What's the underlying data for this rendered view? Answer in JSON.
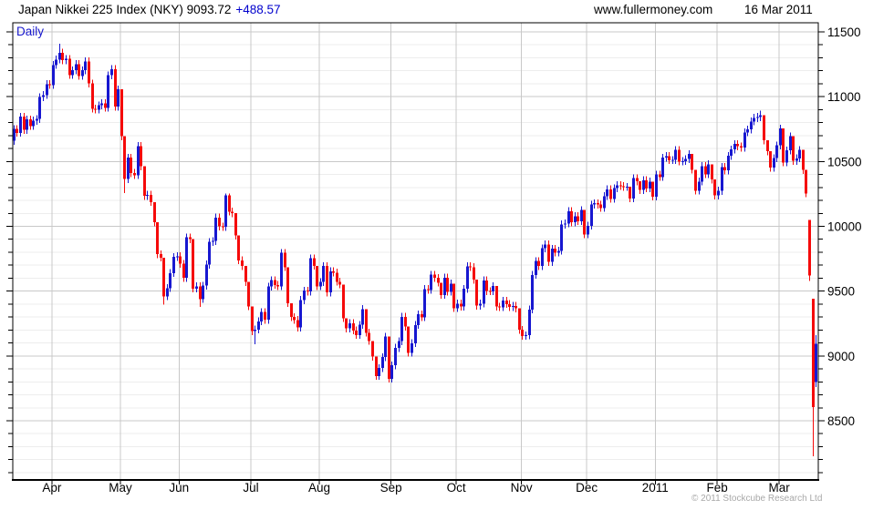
{
  "header": {
    "title": "Japan Nikkei 225 Index (NKY) 9093.72",
    "change": "+488.57",
    "website": "www.fullermoney.com",
    "date": "16 Mar 2011"
  },
  "footer": {
    "copyright": "© 2011 Stockcube Research Ltd"
  },
  "chart_data": {
    "type": "candlestick",
    "title": "Japan Nikkei 225 Index (NKY)",
    "timeframe_label": "Daily",
    "last_close": 9093.72,
    "change": 488.57,
    "ylim": [
      8043,
      11570
    ],
    "y_ticks": [
      8500,
      9000,
      9500,
      10000,
      10500,
      11000,
      11500
    ],
    "y_minor_step": 100,
    "x_tick_labels": [
      "Apr",
      "May",
      "Jun",
      "Jul",
      "Aug",
      "Sep",
      "Oct",
      "Nov",
      "Dec",
      "2011",
      "Feb",
      "Mar"
    ],
    "month_start_indices": [
      12,
      33,
      51,
      73,
      94,
      116,
      136,
      156,
      176,
      197,
      216,
      235
    ],
    "up_color": "#1717d0",
    "down_color": "#f50a0a",
    "grid_major_color": "#c8c8c8",
    "grid_minor_color": "#ededed",
    "axis_color": "#000000",
    "legend_position": "none",
    "grid": "on",
    "candles": [
      [
        10660,
        10781,
        10630,
        10751
      ],
      [
        10751,
        10781,
        10691,
        10721
      ],
      [
        10721,
        10876,
        10691,
        10846
      ],
      [
        10846,
        10876,
        10714,
        10744
      ],
      [
        10744,
        10854,
        10714,
        10824
      ],
      [
        10824,
        10854,
        10744,
        10774
      ],
      [
        10774,
        10845,
        10744,
        10815
      ],
      [
        10815,
        10858,
        10785,
        10828
      ],
      [
        10828,
        11026,
        10798,
        10996
      ],
      [
        10996,
        11042,
        10966,
        11012
      ],
      [
        11012,
        11127,
        10982,
        11097
      ],
      [
        11097,
        11127,
        11060,
        11090
      ],
      [
        11090,
        11274,
        11060,
        11244
      ],
      [
        11244,
        11316,
        11214,
        11286
      ],
      [
        11286,
        11408,
        11256,
        11339
      ],
      [
        11339,
        11369,
        11252,
        11282
      ],
      [
        11282,
        11322,
        11252,
        11292
      ],
      [
        11292,
        11322,
        11138,
        11168
      ],
      [
        11168,
        11234,
        11138,
        11204
      ],
      [
        11204,
        11281,
        11174,
        11251
      ],
      [
        11251,
        11281,
        11131,
        11161
      ],
      [
        11161,
        11234,
        11131,
        11204
      ],
      [
        11204,
        11303,
        11174,
        11273
      ],
      [
        11273,
        11303,
        11072,
        11102
      ],
      [
        11102,
        11132,
        10878,
        10908
      ],
      [
        10908,
        10938,
        10870,
        10900
      ],
      [
        10900,
        10964,
        10870,
        10934
      ],
      [
        10934,
        10979,
        10904,
        10949
      ],
      [
        10949,
        10979,
        10884,
        10914
      ],
      [
        10914,
        11195,
        10884,
        11165
      ],
      [
        11165,
        11242,
        11135,
        11212
      ],
      [
        11212,
        11242,
        10894,
        10924
      ],
      [
        10924,
        11087,
        10894,
        11057
      ],
      [
        11057,
        11057,
        10665,
        10695
      ],
      [
        10695,
        10695,
        10255,
        10365
      ],
      [
        10365,
        10560,
        10335,
        10530
      ],
      [
        10530,
        10560,
        10381,
        10411
      ],
      [
        10411,
        10441,
        10364,
        10394
      ],
      [
        10394,
        10650,
        10364,
        10620
      ],
      [
        10620,
        10650,
        10432,
        10462
      ],
      [
        10462,
        10462,
        10205,
        10235
      ],
      [
        10235,
        10273,
        10205,
        10243
      ],
      [
        10243,
        10273,
        10157,
        10187
      ],
      [
        10187,
        10187,
        10000,
        10030
      ],
      [
        10030,
        10030,
        9755,
        9785
      ],
      [
        9785,
        9815,
        9728,
        9758
      ],
      [
        9758,
        9758,
        9395,
        9460
      ],
      [
        9460,
        9553,
        9430,
        9523
      ],
      [
        9523,
        9669,
        9493,
        9639
      ],
      [
        9639,
        9793,
        9609,
        9763
      ],
      [
        9763,
        9799,
        9733,
        9769
      ],
      [
        9769,
        9799,
        9681,
        9711
      ],
      [
        9711,
        9741,
        9573,
        9603
      ],
      [
        9603,
        9944,
        9573,
        9914
      ],
      [
        9914,
        9944,
        9871,
        9901
      ],
      [
        9901,
        9901,
        9490,
        9520
      ],
      [
        9520,
        9567,
        9490,
        9537
      ],
      [
        9537,
        9567,
        9378,
        9439
      ],
      [
        9439,
        9572,
        9409,
        9542
      ],
      [
        9542,
        9735,
        9512,
        9705
      ],
      [
        9705,
        9909,
        9675,
        9879
      ],
      [
        9879,
        9917,
        9849,
        9887
      ],
      [
        9887,
        10098,
        9857,
        10068
      ],
      [
        10068,
        10098,
        9969,
        9999
      ],
      [
        9999,
        10029,
        9965,
        9995
      ],
      [
        9995,
        10252,
        9965,
        10238
      ],
      [
        10238,
        10252,
        10083,
        10113
      ],
      [
        10113,
        10143,
        10071,
        10101
      ],
      [
        10101,
        10101,
        9898,
        9928
      ],
      [
        9928,
        9928,
        9707,
        9737
      ],
      [
        9737,
        9767,
        9663,
        9693
      ],
      [
        9693,
        9693,
        9540,
        9570
      ],
      [
        9570,
        9570,
        9353,
        9383
      ],
      [
        9383,
        9383,
        9161,
        9191
      ],
      [
        9191,
        9233,
        9091,
        9203
      ],
      [
        9203,
        9296,
        9173,
        9266
      ],
      [
        9266,
        9368,
        9236,
        9338
      ],
      [
        9338,
        9368,
        9249,
        9279
      ],
      [
        9279,
        9565,
        9249,
        9535
      ],
      [
        9535,
        9615,
        9505,
        9585
      ],
      [
        9585,
        9615,
        9518,
        9548
      ],
      [
        9548,
        9578,
        9507,
        9537
      ],
      [
        9537,
        9825,
        9507,
        9795
      ],
      [
        9795,
        9825,
        9655,
        9685
      ],
      [
        9685,
        9685,
        9378,
        9408
      ],
      [
        9408,
        9408,
        9270,
        9300
      ],
      [
        9300,
        9330,
        9248,
        9278
      ],
      [
        9278,
        9308,
        9190,
        9220
      ],
      [
        9220,
        9461,
        9190,
        9431
      ],
      [
        9431,
        9533,
        9401,
        9503
      ],
      [
        9503,
        9533,
        9467,
        9497
      ],
      [
        9497,
        9783,
        9467,
        9753
      ],
      [
        9753,
        9783,
        9666,
        9696
      ],
      [
        9696,
        9696,
        9507,
        9537
      ],
      [
        9537,
        9600,
        9507,
        9570
      ],
      [
        9570,
        9724,
        9540,
        9694
      ],
      [
        9694,
        9724,
        9459,
        9489
      ],
      [
        9489,
        9683,
        9459,
        9653
      ],
      [
        9653,
        9683,
        9612,
        9642
      ],
      [
        9642,
        9672,
        9542,
        9572
      ],
      [
        9572,
        9602,
        9521,
        9551
      ],
      [
        9551,
        9551,
        9262,
        9292
      ],
      [
        9292,
        9292,
        9182,
        9212
      ],
      [
        9212,
        9283,
        9182,
        9253
      ],
      [
        9253,
        9283,
        9166,
        9196
      ],
      [
        9196,
        9226,
        9131,
        9161
      ],
      [
        9161,
        9270,
        9131,
        9240
      ],
      [
        9240,
        9392,
        9210,
        9362
      ],
      [
        9362,
        9362,
        9149,
        9179
      ],
      [
        9179,
        9209,
        9086,
        9116
      ],
      [
        9116,
        9116,
        8965,
        8995
      ],
      [
        8995,
        8995,
        8815,
        8845
      ],
      [
        8845,
        8936,
        8815,
        8906
      ],
      [
        8906,
        9021,
        8876,
        8991
      ],
      [
        8991,
        9179,
        8961,
        9149
      ],
      [
        9149,
        9149,
        8796,
        8824
      ],
      [
        8824,
        8957,
        8794,
        8927
      ],
      [
        8927,
        9092,
        8897,
        9062
      ],
      [
        9062,
        9144,
        9032,
        9114
      ],
      [
        9114,
        9331,
        9084,
        9301
      ],
      [
        9301,
        9331,
        9196,
        9226
      ],
      [
        9226,
        9226,
        8994,
        9024
      ],
      [
        9024,
        9128,
        8994,
        9098
      ],
      [
        9098,
        9269,
        9068,
        9239
      ],
      [
        9239,
        9351,
        9209,
        9321
      ],
      [
        9321,
        9351,
        9269,
        9299
      ],
      [
        9299,
        9546,
        9269,
        9516
      ],
      [
        9516,
        9546,
        9479,
        9509
      ],
      [
        9509,
        9656,
        9479,
        9626
      ],
      [
        9626,
        9656,
        9572,
        9602
      ],
      [
        9602,
        9632,
        9536,
        9566
      ],
      [
        9566,
        9566,
        9441,
        9471
      ],
      [
        9471,
        9633,
        9441,
        9603
      ],
      [
        9603,
        9633,
        9465,
        9495
      ],
      [
        9495,
        9589,
        9465,
        9559
      ],
      [
        9559,
        9559,
        9339,
        9369
      ],
      [
        9369,
        9434,
        9339,
        9404
      ],
      [
        9404,
        9434,
        9351,
        9381
      ],
      [
        9381,
        9548,
        9351,
        9518
      ],
      [
        9518,
        9721,
        9488,
        9691
      ],
      [
        9691,
        9721,
        9654,
        9684
      ],
      [
        9684,
        9714,
        9558,
        9588
      ],
      [
        9588,
        9588,
        9358,
        9388
      ],
      [
        9388,
        9433,
        9358,
        9403
      ],
      [
        9403,
        9613,
        9373,
        9583
      ],
      [
        9583,
        9613,
        9470,
        9500
      ],
      [
        9500,
        9530,
        9468,
        9498
      ],
      [
        9498,
        9569,
        9468,
        9539
      ],
      [
        9539,
        9539,
        9351,
        9381
      ],
      [
        9381,
        9411,
        9346,
        9376
      ],
      [
        9376,
        9456,
        9346,
        9426
      ],
      [
        9426,
        9456,
        9371,
        9401
      ],
      [
        9401,
        9431,
        9347,
        9377
      ],
      [
        9377,
        9417,
        9347,
        9387
      ],
      [
        9387,
        9417,
        9336,
        9366
      ],
      [
        9366,
        9366,
        9172,
        9202
      ],
      [
        9202,
        9232,
        9124,
        9154
      ],
      [
        9154,
        9189,
        9124,
        9159
      ],
      [
        9159,
        9388,
        9129,
        9358
      ],
      [
        9358,
        9655,
        9328,
        9625
      ],
      [
        9625,
        9762,
        9595,
        9732
      ],
      [
        9732,
        9762,
        9664,
        9694
      ],
      [
        9694,
        9860,
        9664,
        9830
      ],
      [
        9830,
        9891,
        9800,
        9861
      ],
      [
        9861,
        9891,
        9695,
        9725
      ],
      [
        9725,
        9857,
        9695,
        9827
      ],
      [
        9827,
        9857,
        9767,
        9797
      ],
      [
        9797,
        9841,
        9767,
        9811
      ],
      [
        9811,
        10044,
        9781,
        10014
      ],
      [
        10014,
        10052,
        9984,
        10022
      ],
      [
        10022,
        10146,
        9992,
        10116
      ],
      [
        10116,
        10146,
        10000,
        10030
      ],
      [
        10030,
        10109,
        10000,
        10079
      ],
      [
        10079,
        10109,
        10010,
        10040
      ],
      [
        10040,
        10156,
        10010,
        10126
      ],
      [
        10126,
        10126,
        9907,
        9937
      ],
      [
        9937,
        10034,
        9907,
        10004
      ],
      [
        10004,
        10198,
        9974,
        10168
      ],
      [
        10168,
        10208,
        10138,
        10178
      ],
      [
        10178,
        10208,
        10138,
        10168
      ],
      [
        10168,
        10198,
        10111,
        10141
      ],
      [
        10141,
        10262,
        10111,
        10232
      ],
      [
        10232,
        10315,
        10202,
        10285
      ],
      [
        10285,
        10315,
        10182,
        10212
      ],
      [
        10212,
        10324,
        10182,
        10294
      ],
      [
        10294,
        10347,
        10264,
        10317
      ],
      [
        10317,
        10347,
        10280,
        10310
      ],
      [
        10310,
        10340,
        10274,
        10304
      ],
      [
        10304,
        10334,
        10274,
        10305
      ],
      [
        10305,
        10305,
        10186,
        10216
      ],
      [
        10216,
        10401,
        10186,
        10371
      ],
      [
        10371,
        10401,
        10317,
        10347
      ],
      [
        10347,
        10347,
        10250,
        10280
      ],
      [
        10280,
        10386,
        10250,
        10356
      ],
      [
        10356,
        10386,
        10263,
        10293
      ],
      [
        10293,
        10375,
        10263,
        10345
      ],
      [
        10345,
        10345,
        10199,
        10229
      ],
      [
        10229,
        10429,
        10199,
        10399
      ],
      [
        10399,
        10429,
        10351,
        10381
      ],
      [
        10381,
        10560,
        10351,
        10530
      ],
      [
        10530,
        10571,
        10500,
        10541
      ],
      [
        10541,
        10571,
        10481,
        10511
      ],
      [
        10511,
        10542,
        10481,
        10512
      ],
      [
        10512,
        10620,
        10482,
        10590
      ],
      [
        10590,
        10620,
        10469,
        10499
      ],
      [
        10499,
        10533,
        10469,
        10503
      ],
      [
        10503,
        10549,
        10473,
        10519
      ],
      [
        10519,
        10587,
        10489,
        10557
      ],
      [
        10557,
        10557,
        10407,
        10437
      ],
      [
        10437,
        10437,
        10245,
        10275
      ],
      [
        10275,
        10376,
        10245,
        10346
      ],
      [
        10346,
        10495,
        10316,
        10465
      ],
      [
        10465,
        10495,
        10372,
        10402
      ],
      [
        10402,
        10508,
        10372,
        10478
      ],
      [
        10478,
        10478,
        10331,
        10361
      ],
      [
        10361,
        10361,
        10208,
        10238
      ],
      [
        10238,
        10304,
        10208,
        10274
      ],
      [
        10274,
        10487,
        10244,
        10457
      ],
      [
        10457,
        10487,
        10401,
        10431
      ],
      [
        10431,
        10574,
        10401,
        10544
      ],
      [
        10544,
        10623,
        10514,
        10593
      ],
      [
        10593,
        10665,
        10563,
        10635
      ],
      [
        10635,
        10665,
        10587,
        10617
      ],
      [
        10617,
        10647,
        10576,
        10606
      ],
      [
        10606,
        10755,
        10576,
        10725
      ],
      [
        10725,
        10777,
        10695,
        10747
      ],
      [
        10747,
        10839,
        10717,
        10809
      ],
      [
        10809,
        10866,
        10779,
        10836
      ],
      [
        10836,
        10873,
        10806,
        10843
      ],
      [
        10843,
        10891,
        10813,
        10857
      ],
      [
        10857,
        10857,
        10634,
        10664
      ],
      [
        10664,
        10664,
        10549,
        10579
      ],
      [
        10579,
        10579,
        10422,
        10452
      ],
      [
        10452,
        10556,
        10422,
        10526
      ],
      [
        10526,
        10654,
        10496,
        10624
      ],
      [
        10624,
        10784,
        10594,
        10754
      ],
      [
        10754,
        10754,
        10462,
        10492
      ],
      [
        10492,
        10616,
        10462,
        10586
      ],
      [
        10586,
        10724,
        10556,
        10694
      ],
      [
        10694,
        10694,
        10475,
        10505
      ],
      [
        10505,
        10555,
        10475,
        10525
      ],
      [
        10525,
        10619,
        10495,
        10589
      ],
      [
        10589,
        10589,
        10404,
        10434
      ],
      [
        10434,
        10434,
        10224,
        10254
      ],
      [
        10050,
        10050,
        9578,
        9620
      ],
      [
        9440,
        9440,
        8227,
        8605
      ],
      [
        8800,
        9160,
        8760,
        9094
      ]
    ]
  }
}
